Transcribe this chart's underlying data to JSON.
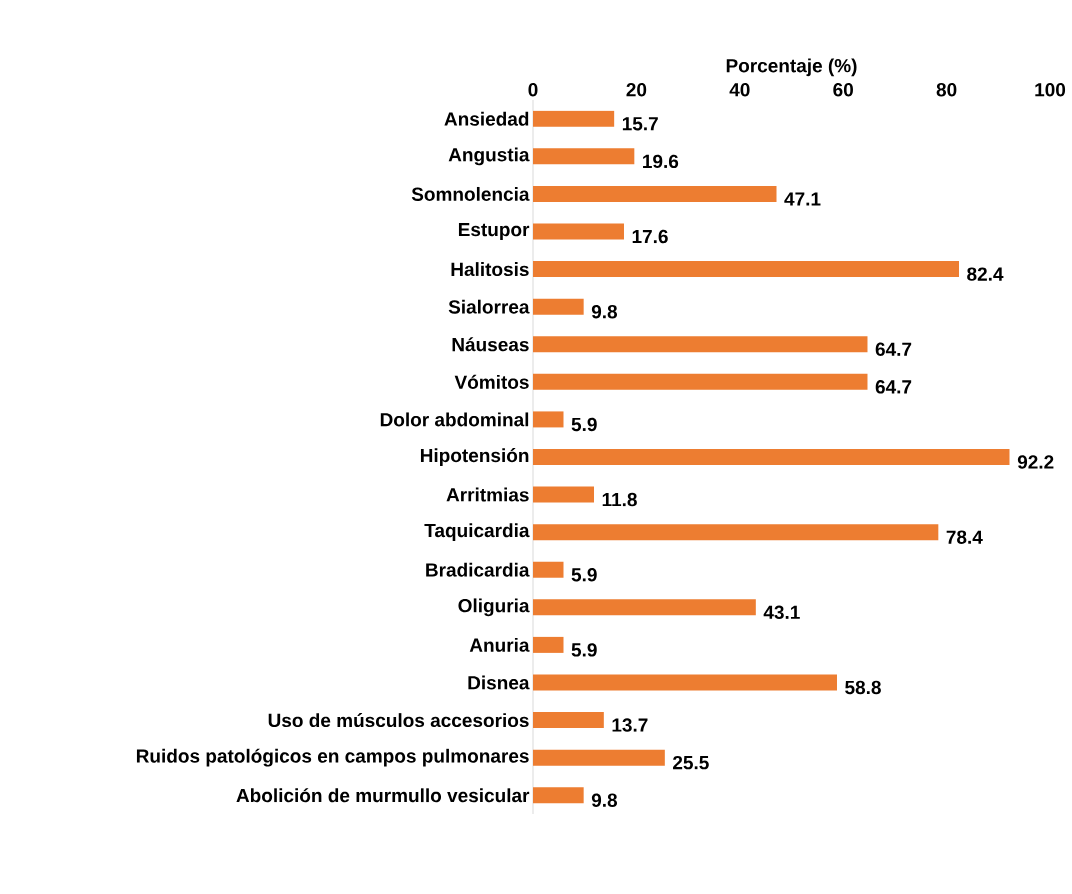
{
  "chart_data": {
    "type": "bar",
    "orientation": "horizontal",
    "xlabel": "Porcentaje (%)",
    "categories": [
      "Ansiedad",
      "Angustia",
      "Somnolencia",
      "Estupor",
      "Halitosis",
      "Sialorrea",
      "Náuseas",
      "Vómitos",
      "Dolor abdominal",
      "Hipotensión",
      "Arritmias",
      "Taquicardia",
      "Bradicardia",
      "Oliguria",
      "Anuria",
      "Disnea",
      "Uso de músculos accesorios",
      "Ruidos patológicos en campos pulmonares",
      "Abolición de murmullo vesicular"
    ],
    "values": [
      15.7,
      19.6,
      47.1,
      17.6,
      82.4,
      9.8,
      64.7,
      64.7,
      5.9,
      92.2,
      11.8,
      78.4,
      5.9,
      43.1,
      5.9,
      58.8,
      13.7,
      25.5,
      9.8
    ],
    "color": "#ed7d31",
    "xlim": [
      0,
      100
    ],
    "xticks": [
      0,
      20,
      40,
      60,
      80,
      100
    ],
    "data_labels": true
  }
}
